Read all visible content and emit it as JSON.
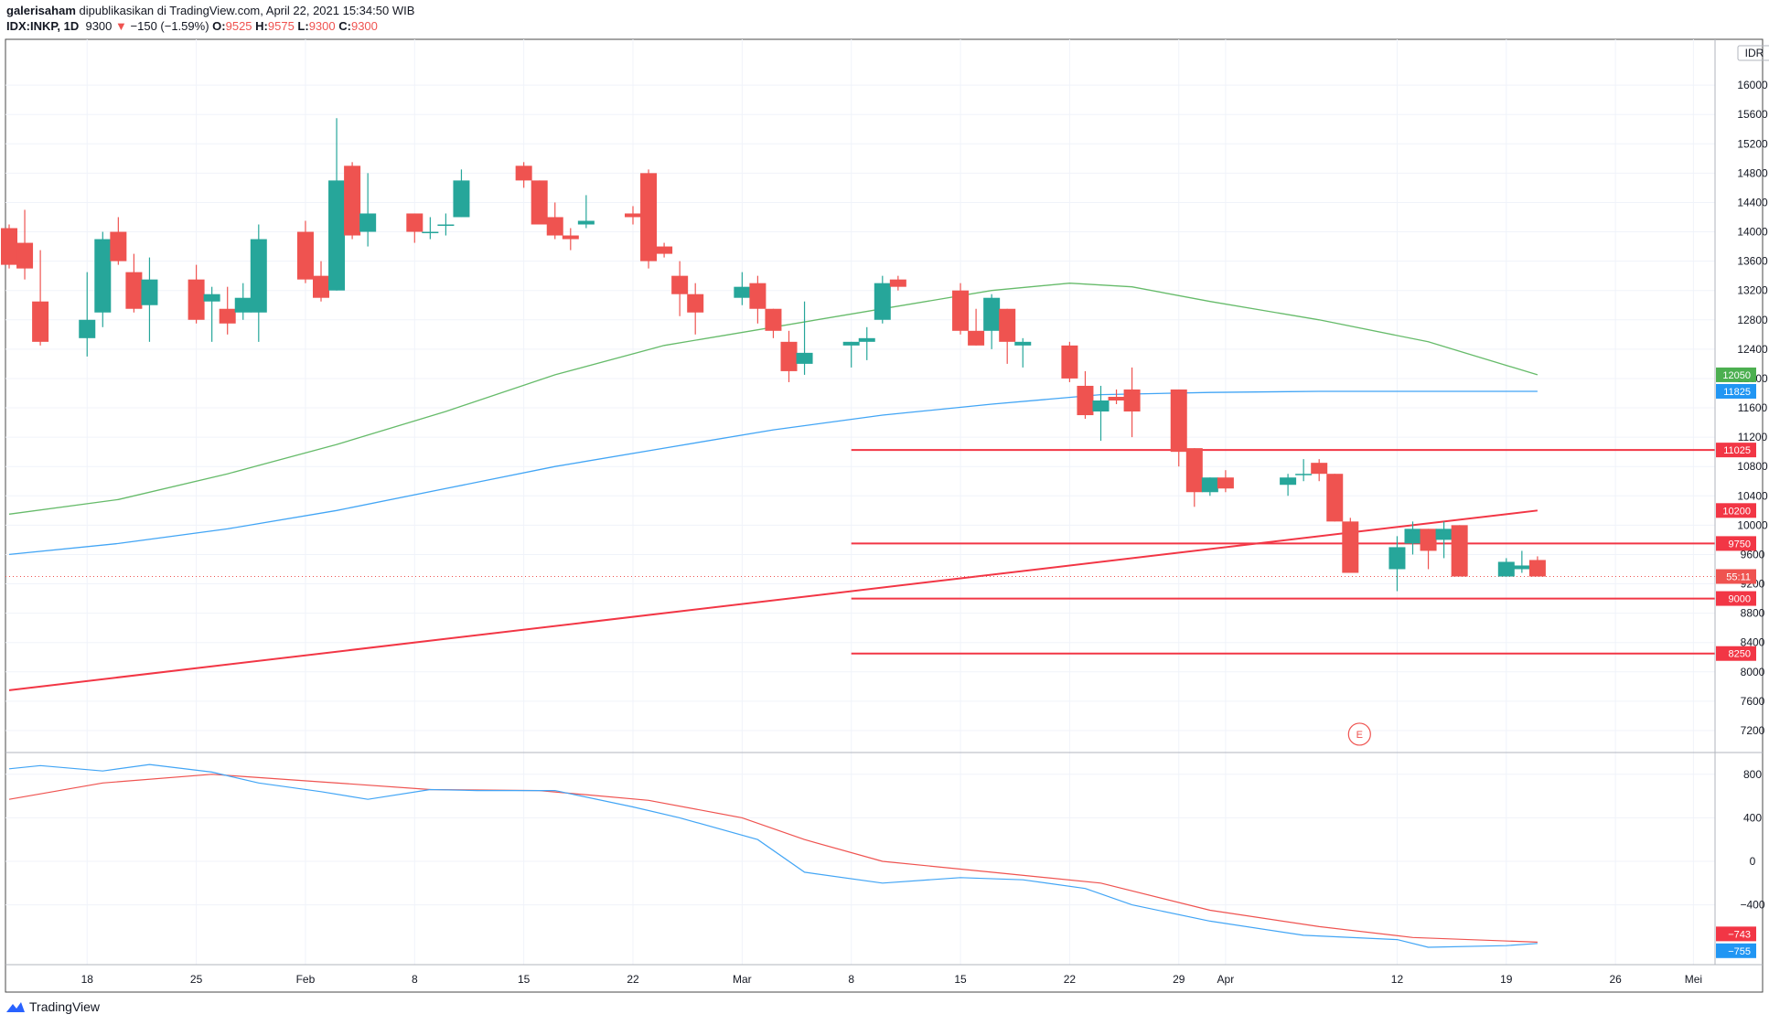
{
  "header": {
    "publisher": "galerisaham",
    "published_text": "dipublikasikan di TradingView.com, April 22, 2021 15:34:50 WIB",
    "symbol": "IDX:INKP, 1D",
    "last": "9300",
    "change_arrow": "▼",
    "change": "−150 (−1.59%)",
    "o_label": "O:",
    "o_value": "9525",
    "h_label": "H:",
    "h_value": "9575",
    "l_label": "L:",
    "l_value": "9300",
    "c_label": "C:",
    "c_value": "9300"
  },
  "footer": {
    "brand": "TradingView",
    "logo_icon": "tradingview-logo-icon"
  },
  "colors": {
    "up": "#26a69a",
    "down": "#ef5350",
    "ma_green": "#66bb6a",
    "ma_blue": "#42a5f5",
    "hline": "#f23645",
    "grid": "#f0f3fa",
    "axis_text": "#131722"
  },
  "chart_data": {
    "type": "candlestick",
    "currency_label": "IDR",
    "price_axis_ticks": [
      7200,
      7600,
      8000,
      8400,
      8800,
      9200,
      9600,
      10000,
      10400,
      10800,
      11200,
      11600,
      12000,
      12400,
      12800,
      13200,
      13600,
      14000,
      14400,
      14800,
      15200,
      15600,
      16000
    ],
    "price_ylim": [
      6900,
      16500
    ],
    "x_axis_labels": [
      "18",
      "25",
      "Feb",
      "8",
      "15",
      "22",
      "Mar",
      "8",
      "15",
      "22",
      "29",
      "Apr",
      "12",
      "19",
      "26",
      "Mei"
    ],
    "x_axis_label_dates": [
      "2021-01-18",
      "2021-01-25",
      "2021-02-01",
      "2021-02-08",
      "2021-02-15",
      "2021-02-22",
      "2021-03-01",
      "2021-03-08",
      "2021-03-15",
      "2021-03-22",
      "2021-03-29",
      "2021-04-01",
      "2021-04-12",
      "2021-04-19",
      "2021-04-26",
      "2021-05-01"
    ],
    "candles": [
      {
        "d": "2021-01-13",
        "o": 14050,
        "h": 14100,
        "l": 13500,
        "c": 13550
      },
      {
        "d": "2021-01-14",
        "o": 13850,
        "h": 14300,
        "l": 13350,
        "c": 13500
      },
      {
        "d": "2021-01-15",
        "o": 13050,
        "h": 13750,
        "l": 12450,
        "c": 12500
      },
      {
        "d": "2021-01-18",
        "o": 12550,
        "h": 13450,
        "l": 12300,
        "c": 12800
      },
      {
        "d": "2021-01-19",
        "o": 12900,
        "h": 14000,
        "l": 12700,
        "c": 13900
      },
      {
        "d": "2021-01-20",
        "o": 14000,
        "h": 14200,
        "l": 13550,
        "c": 13600
      },
      {
        "d": "2021-01-21",
        "o": 13450,
        "h": 13700,
        "l": 12900,
        "c": 12950
      },
      {
        "d": "2021-01-22",
        "o": 13000,
        "h": 13650,
        "l": 12500,
        "c": 13350
      },
      {
        "d": "2021-01-25",
        "o": 13350,
        "h": 13550,
        "l": 12750,
        "c": 12800
      },
      {
        "d": "2021-01-26",
        "o": 13050,
        "h": 13250,
        "l": 12500,
        "c": 13150
      },
      {
        "d": "2021-01-27",
        "o": 12950,
        "h": 13250,
        "l": 12600,
        "c": 12750
      },
      {
        "d": "2021-01-28",
        "o": 12900,
        "h": 13300,
        "l": 12800,
        "c": 13100
      },
      {
        "d": "2021-01-29",
        "o": 12900,
        "h": 14100,
        "l": 12500,
        "c": 13900
      },
      {
        "d": "2021-02-01",
        "o": 14000,
        "h": 14150,
        "l": 13300,
        "c": 13350
      },
      {
        "d": "2021-02-02",
        "o": 13400,
        "h": 13600,
        "l": 13050,
        "c": 13100
      },
      {
        "d": "2021-02-03",
        "o": 13200,
        "h": 15550,
        "l": 13200,
        "c": 14700
      },
      {
        "d": "2021-02-04",
        "o": 14900,
        "h": 14950,
        "l": 13900,
        "c": 13950
      },
      {
        "d": "2021-02-05",
        "o": 14000,
        "h": 14800,
        "l": 13800,
        "c": 14250
      },
      {
        "d": "2021-02-08",
        "o": 14250,
        "h": 14250,
        "l": 13850,
        "c": 14000
      },
      {
        "d": "2021-02-09",
        "o": 14000,
        "h": 14200,
        "l": 13900,
        "c": 14000
      },
      {
        "d": "2021-02-10",
        "o": 14100,
        "h": 14250,
        "l": 13950,
        "c": 14100
      },
      {
        "d": "2021-02-11",
        "o": 14200,
        "h": 14850,
        "l": 14200,
        "c": 14700
      },
      {
        "d": "2021-02-15",
        "o": 14900,
        "h": 14950,
        "l": 14600,
        "c": 14700
      },
      {
        "d": "2021-02-16",
        "o": 14700,
        "h": 14700,
        "l": 14100,
        "c": 14100
      },
      {
        "d": "2021-02-17",
        "o": 14200,
        "h": 14400,
        "l": 13900,
        "c": 13950
      },
      {
        "d": "2021-02-18",
        "o": 13950,
        "h": 14050,
        "l": 13750,
        "c": 13900
      },
      {
        "d": "2021-02-19",
        "o": 14100,
        "h": 14500,
        "l": 14050,
        "c": 14150
      },
      {
        "d": "2021-02-22",
        "o": 14250,
        "h": 14350,
        "l": 14100,
        "c": 14200
      },
      {
        "d": "2021-02-23",
        "o": 14800,
        "h": 14850,
        "l": 13500,
        "c": 13600
      },
      {
        "d": "2021-02-24",
        "o": 13800,
        "h": 13850,
        "l": 13650,
        "c": 13700
      },
      {
        "d": "2021-02-25",
        "o": 13400,
        "h": 13600,
        "l": 12850,
        "c": 13150
      },
      {
        "d": "2021-02-26",
        "o": 13150,
        "h": 13300,
        "l": 12600,
        "c": 12900
      },
      {
        "d": "2021-03-01",
        "o": 13100,
        "h": 13450,
        "l": 13000,
        "c": 13250
      },
      {
        "d": "2021-03-02",
        "o": 13300,
        "h": 13400,
        "l": 12750,
        "c": 12950
      },
      {
        "d": "2021-03-03",
        "o": 12950,
        "h": 12950,
        "l": 12550,
        "c": 12650
      },
      {
        "d": "2021-03-04",
        "o": 12500,
        "h": 12650,
        "l": 11950,
        "c": 12100
      },
      {
        "d": "2021-03-05",
        "o": 12200,
        "h": 13050,
        "l": 12050,
        "c": 12350
      },
      {
        "d": "2021-03-08",
        "o": 12450,
        "h": 12500,
        "l": 12150,
        "c": 12500
      },
      {
        "d": "2021-03-09",
        "o": 12500,
        "h": 12700,
        "l": 12250,
        "c": 12550
      },
      {
        "d": "2021-03-10",
        "o": 12800,
        "h": 13400,
        "l": 12750,
        "c": 13300
      },
      {
        "d": "2021-03-11",
        "o": 13350,
        "h": 13400,
        "l": 13200,
        "c": 13250
      },
      {
        "d": "2021-03-15",
        "o": 13200,
        "h": 13300,
        "l": 12600,
        "c": 12650
      },
      {
        "d": "2021-03-16",
        "o": 12650,
        "h": 12950,
        "l": 12450,
        "c": 12450
      },
      {
        "d": "2021-03-17",
        "o": 12650,
        "h": 13150,
        "l": 12400,
        "c": 13100
      },
      {
        "d": "2021-03-18",
        "o": 12950,
        "h": 12950,
        "l": 12200,
        "c": 12500
      },
      {
        "d": "2021-03-19",
        "o": 12450,
        "h": 12550,
        "l": 12150,
        "c": 12500
      },
      {
        "d": "2021-03-22",
        "o": 12450,
        "h": 12500,
        "l": 11950,
        "c": 12000
      },
      {
        "d": "2021-03-23",
        "o": 11900,
        "h": 12100,
        "l": 11450,
        "c": 11500
      },
      {
        "d": "2021-03-24",
        "o": 11550,
        "h": 11900,
        "l": 11150,
        "c": 11700
      },
      {
        "d": "2021-03-25",
        "o": 11750,
        "h": 11850,
        "l": 11650,
        "c": 11700
      },
      {
        "d": "2021-03-26",
        "o": 11850,
        "h": 12150,
        "l": 11200,
        "c": 11550
      },
      {
        "d": "2021-03-29",
        "o": 11850,
        "h": 11850,
        "l": 10800,
        "c": 11000
      },
      {
        "d": "2021-03-30",
        "o": 11050,
        "h": 11050,
        "l": 10250,
        "c": 10450
      },
      {
        "d": "2021-03-31",
        "o": 10450,
        "h": 10650,
        "l": 10400,
        "c": 10650
      },
      {
        "d": "2021-04-01",
        "o": 10650,
        "h": 10750,
        "l": 10450,
        "c": 10500
      },
      {
        "d": "2021-04-05",
        "o": 10550,
        "h": 10700,
        "l": 10400,
        "c": 10650
      },
      {
        "d": "2021-04-06",
        "o": 10700,
        "h": 10900,
        "l": 10600,
        "c": 10700
      },
      {
        "d": "2021-04-07",
        "o": 10850,
        "h": 10900,
        "l": 10600,
        "c": 10700
      },
      {
        "d": "2021-04-08",
        "o": 10700,
        "h": 10700,
        "l": 10050,
        "c": 10050
      },
      {
        "d": "2021-04-09",
        "o": 10050,
        "h": 10100,
        "l": 9350,
        "c": 9350
      },
      {
        "d": "2021-04-12",
        "o": 9400,
        "h": 9850,
        "l": 9100,
        "c": 9700
      },
      {
        "d": "2021-04-13",
        "o": 9750,
        "h": 10050,
        "l": 9600,
        "c": 9950
      },
      {
        "d": "2021-04-14",
        "o": 9950,
        "h": 9950,
        "l": 9400,
        "c": 9650
      },
      {
        "d": "2021-04-15",
        "o": 9800,
        "h": 10050,
        "l": 9550,
        "c": 9950
      },
      {
        "d": "2021-04-16",
        "o": 10000,
        "h": 10000,
        "l": 9300,
        "c": 9300
      },
      {
        "d": "2021-04-19",
        "o": 9300,
        "h": 9550,
        "l": 9300,
        "c": 9500
      },
      {
        "d": "2021-04-20",
        "o": 9400,
        "h": 9650,
        "l": 9350,
        "c": 9450
      },
      {
        "d": "2021-04-21",
        "o": 9525,
        "h": 9575,
        "l": 9300,
        "c": 9300
      }
    ],
    "ma_green": [
      {
        "d": "2021-01-13",
        "v": 10150
      },
      {
        "d": "2021-01-20",
        "v": 10350
      },
      {
        "d": "2021-01-27",
        "v": 10700
      },
      {
        "d": "2021-02-03",
        "v": 11100
      },
      {
        "d": "2021-02-10",
        "v": 11550
      },
      {
        "d": "2021-02-17",
        "v": 12050
      },
      {
        "d": "2021-02-24",
        "v": 12450
      },
      {
        "d": "2021-03-03",
        "v": 12700
      },
      {
        "d": "2021-03-10",
        "v": 12950
      },
      {
        "d": "2021-03-17",
        "v": 13200
      },
      {
        "d": "2021-03-22",
        "v": 13300
      },
      {
        "d": "2021-03-26",
        "v": 13250
      },
      {
        "d": "2021-03-31",
        "v": 13050
      },
      {
        "d": "2021-04-07",
        "v": 12800
      },
      {
        "d": "2021-04-14",
        "v": 12500
      },
      {
        "d": "2021-04-21",
        "v": 12050
      }
    ],
    "ma_blue": [
      {
        "d": "2021-01-13",
        "v": 9600
      },
      {
        "d": "2021-01-20",
        "v": 9750
      },
      {
        "d": "2021-01-27",
        "v": 9950
      },
      {
        "d": "2021-02-03",
        "v": 10200
      },
      {
        "d": "2021-02-10",
        "v": 10500
      },
      {
        "d": "2021-02-17",
        "v": 10800
      },
      {
        "d": "2021-02-24",
        "v": 11050
      },
      {
        "d": "2021-03-03",
        "v": 11300
      },
      {
        "d": "2021-03-10",
        "v": 11500
      },
      {
        "d": "2021-03-17",
        "v": 11650
      },
      {
        "d": "2021-03-24",
        "v": 11780
      },
      {
        "d": "2021-03-31",
        "v": 11810
      },
      {
        "d": "2021-04-07",
        "v": 11825
      },
      {
        "d": "2021-04-21",
        "v": 11825
      }
    ],
    "trend_line": {
      "from": {
        "d": "2021-01-13",
        "v": 7750
      },
      "to": {
        "d": "2021-04-21",
        "v": 10200
      }
    },
    "horizontal_lines": [
      {
        "v": 11025,
        "from": "2021-03-08"
      },
      {
        "v": 9750,
        "from": "2021-03-08"
      },
      {
        "v": 9000,
        "from": "2021-03-08"
      },
      {
        "v": 8250,
        "from": "2021-03-08"
      }
    ],
    "price_labels": [
      {
        "text": "12050",
        "v": 12050,
        "color": "#4caf50"
      },
      {
        "text": "11825",
        "v": 11825,
        "color": "#2196f3"
      },
      {
        "text": "11025",
        "v": 11025,
        "color": "#f23645"
      },
      {
        "text": "10200",
        "v": 10200,
        "color": "#f23645"
      },
      {
        "text": "9750",
        "v": 9750,
        "color": "#f23645"
      },
      {
        "text": "55:11",
        "v": 9300,
        "color": "#ef5350"
      },
      {
        "text": "9000",
        "v": 9000,
        "color": "#f23645"
      },
      {
        "text": "8250",
        "v": 8250,
        "color": "#f23645"
      }
    ],
    "last_price_value": 9300,
    "earnings_marker": {
      "text": "E",
      "d": "2021-04-09",
      "v": 7150
    },
    "indicator": {
      "ylim": [
        -950,
        1000
      ],
      "ticks": [
        -400,
        0,
        400,
        800
      ],
      "line_blue": [
        {
          "d": "2021-01-13",
          "v": 850
        },
        {
          "d": "2021-01-15",
          "v": 880
        },
        {
          "d": "2021-01-19",
          "v": 830
        },
        {
          "d": "2021-01-22",
          "v": 890
        },
        {
          "d": "2021-01-26",
          "v": 820
        },
        {
          "d": "2021-01-29",
          "v": 720
        },
        {
          "d": "2021-02-02",
          "v": 640
        },
        {
          "d": "2021-02-05",
          "v": 570
        },
        {
          "d": "2021-02-09",
          "v": 660
        },
        {
          "d": "2021-02-12",
          "v": 650
        },
        {
          "d": "2021-02-17",
          "v": 650
        },
        {
          "d": "2021-02-22",
          "v": 500
        },
        {
          "d": "2021-02-25",
          "v": 400
        },
        {
          "d": "2021-03-02",
          "v": 200
        },
        {
          "d": "2021-03-05",
          "v": -100
        },
        {
          "d": "2021-03-10",
          "v": -200
        },
        {
          "d": "2021-03-15",
          "v": -150
        },
        {
          "d": "2021-03-19",
          "v": -170
        },
        {
          "d": "2021-03-23",
          "v": -250
        },
        {
          "d": "2021-03-26",
          "v": -400
        },
        {
          "d": "2021-03-31",
          "v": -550
        },
        {
          "d": "2021-04-06",
          "v": -680
        },
        {
          "d": "2021-04-12",
          "v": -720
        },
        {
          "d": "2021-04-14",
          "v": -790
        },
        {
          "d": "2021-04-19",
          "v": -775
        },
        {
          "d": "2021-04-21",
          "v": -755
        }
      ],
      "line_red": [
        {
          "d": "2021-01-13",
          "v": 570
        },
        {
          "d": "2021-01-19",
          "v": 720
        },
        {
          "d": "2021-01-26",
          "v": 800
        },
        {
          "d": "2021-02-02",
          "v": 730
        },
        {
          "d": "2021-02-09",
          "v": 660
        },
        {
          "d": "2021-02-16",
          "v": 650
        },
        {
          "d": "2021-02-23",
          "v": 560
        },
        {
          "d": "2021-03-01",
          "v": 400
        },
        {
          "d": "2021-03-05",
          "v": 200
        },
        {
          "d": "2021-03-10",
          "v": 0
        },
        {
          "d": "2021-03-17",
          "v": -100
        },
        {
          "d": "2021-03-24",
          "v": -200
        },
        {
          "d": "2021-03-31",
          "v": -450
        },
        {
          "d": "2021-04-07",
          "v": -600
        },
        {
          "d": "2021-04-13",
          "v": -700
        },
        {
          "d": "2021-04-21",
          "v": -743
        }
      ],
      "labels": [
        {
          "text": "−743",
          "v": -743,
          "color": "#f23645"
        },
        {
          "text": "−755",
          "v": -755,
          "color": "#2196f3"
        }
      ]
    }
  }
}
